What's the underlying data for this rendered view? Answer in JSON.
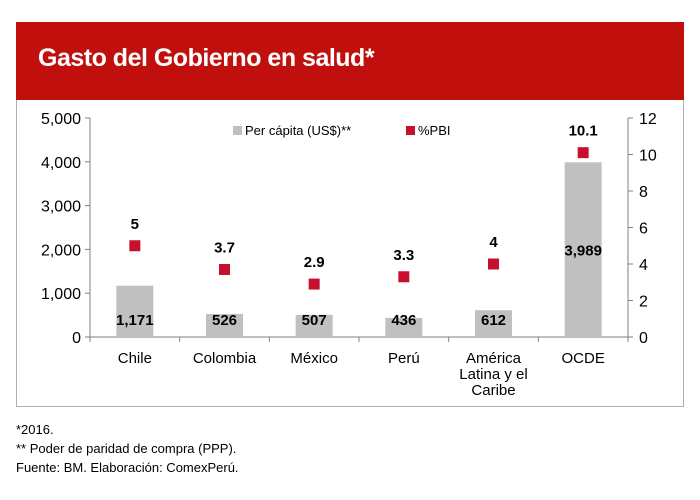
{
  "header": {
    "title": "Gasto del Gobierno en salud*"
  },
  "chart_data": {
    "type": "bar",
    "title": "Gasto del Gobierno en salud*",
    "categories": [
      [
        "Chile"
      ],
      [
        "Colombia"
      ],
      [
        "México"
      ],
      [
        "Perú"
      ],
      [
        "América",
        "Latina y el",
        "Caribe"
      ],
      [
        "OCDE"
      ]
    ],
    "series": [
      {
        "name": "Per cápita (US$)**",
        "type": "bar",
        "axis": "left",
        "color": "#c0c0c0",
        "values": [
          1171,
          526,
          507,
          436,
          612,
          3989
        ],
        "labels": [
          "1,171",
          "526",
          "507",
          "436",
          "612",
          "3,989"
        ]
      },
      {
        "name": "%PBI",
        "type": "scatter",
        "axis": "right",
        "color": "#c8102e",
        "values": [
          5,
          3.7,
          2.9,
          3.3,
          4,
          10.1
        ],
        "labels": [
          "5",
          "3.7",
          "2.9",
          "3.3",
          "4",
          "10.1"
        ]
      }
    ],
    "left_axis": {
      "min": 0,
      "max": 5000,
      "ticks": [
        0,
        1000,
        2000,
        3000,
        4000,
        5000
      ],
      "tick_labels": [
        "0",
        "1,000",
        "2,000",
        "3,000",
        "4,000",
        "5,000"
      ]
    },
    "right_axis": {
      "min": 0,
      "max": 12,
      "ticks": [
        0,
        2,
        4,
        6,
        8,
        10,
        12
      ],
      "tick_labels": [
        "0",
        "2",
        "4",
        "6",
        "8",
        "10",
        "12"
      ]
    },
    "legend_position": "top-center",
    "grid": false
  },
  "footnotes": {
    "year_note": "*2016.",
    "ppp_note": "** Poder de paridad de compra (PPP).",
    "source": "Fuente: BM. Elaboración: ComexPerú."
  },
  "colors": {
    "header": "#c00f0c",
    "bar": "#c0c0c0",
    "marker": "#c8102e"
  }
}
